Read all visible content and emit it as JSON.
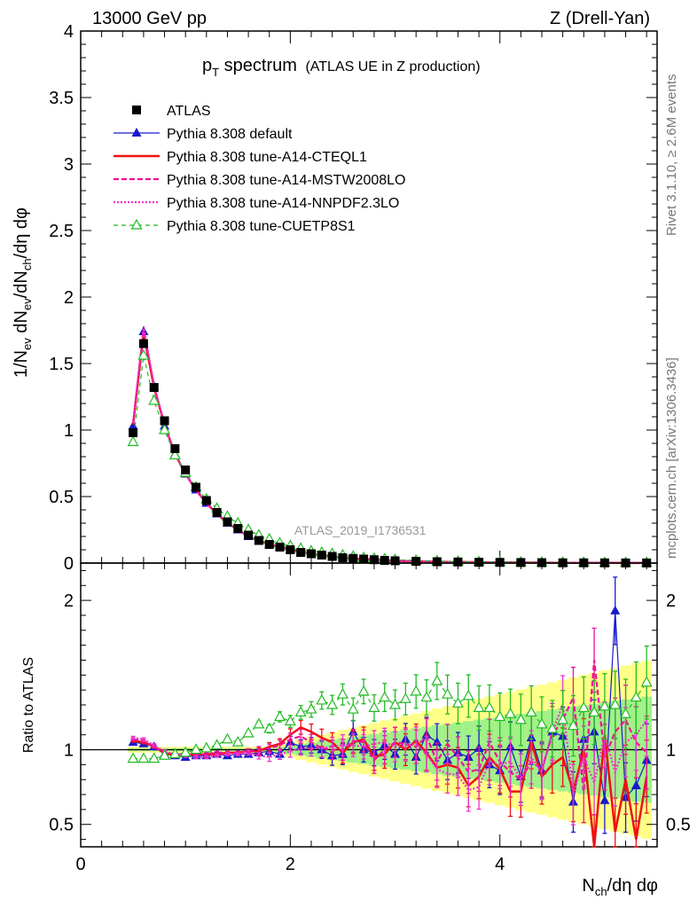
{
  "header": {
    "left": "13000 GeV pp",
    "right": "Z (Drell-Yan)"
  },
  "plot_title": {
    "main": "p",
    "sub": "T",
    "main_rest": " spectrum",
    "detail": "(ATLAS UE in Z production)"
  },
  "side_labels": {
    "rivet": "Rivet 3.1.10, ≥ 2.6M events",
    "mcplots": "mcplots.cern.ch [arXiv:1306.3436]"
  },
  "watermark": "ATLAS_2019_I1736531",
  "colors": {
    "data": "#000000",
    "default": "#1a1acc",
    "cteql1": "#ee1111",
    "mstw": "#ee1199",
    "nnpdf": "#ee33cc",
    "cuetp8s1": "#22bb22",
    "band_yellow": "#ffff88",
    "band_green": "#88ee88"
  },
  "chart_data": [
    {
      "type": "line",
      "panel": "main",
      "ylabel": "1/N_{ev} dN_{ev}/dN_{ch}/dη dφ",
      "ylim": [
        0,
        4
      ],
      "xlim": [
        0,
        5.5
      ],
      "yticks": [
        "0",
        "0.5",
        "1",
        "1.5",
        "2",
        "2.5",
        "3",
        "3.5",
        "4"
      ],
      "legend_position": "top-left",
      "x": [
        0.5,
        0.6,
        0.7,
        0.8,
        0.9,
        1.0,
        1.1,
        1.2,
        1.3,
        1.4,
        1.5,
        1.6,
        1.7,
        1.8,
        1.9,
        2.0,
        2.1,
        2.2,
        2.3,
        2.4,
        2.5,
        2.6,
        2.7,
        2.8,
        2.9,
        3.0,
        3.2,
        3.4,
        3.6,
        3.8,
        4.0,
        4.2,
        4.4,
        4.6,
        4.8,
        5.0,
        5.2,
        5.4
      ],
      "series": [
        {
          "name": "ATLAS",
          "key": "data",
          "values": [
            0.98,
            1.65,
            1.32,
            1.07,
            0.86,
            0.7,
            0.57,
            0.47,
            0.38,
            0.31,
            0.26,
            0.21,
            0.17,
            0.14,
            0.12,
            0.1,
            0.08,
            0.07,
            0.06,
            0.05,
            0.04,
            0.035,
            0.03,
            0.025,
            0.02,
            0.017,
            0.013,
            0.01,
            0.008,
            0.006,
            0.005,
            0.004,
            0.003,
            0.002,
            0.002,
            0.0015,
            0.001,
            0.001
          ]
        },
        {
          "name": "Pythia 8.308 default",
          "key": "default",
          "values": [
            1.03,
            1.74,
            1.33,
            1.03,
            0.82,
            0.67,
            0.55,
            0.45,
            0.37,
            0.3,
            0.25,
            0.2,
            0.17,
            0.14,
            0.12,
            0.1,
            0.08,
            0.07,
            0.06,
            0.05,
            0.04,
            0.035,
            0.03,
            0.025,
            0.02,
            0.017,
            0.013,
            0.01,
            0.008,
            0.006,
            0.005,
            0.004,
            0.003,
            0.002,
            0.002,
            0.0015,
            0.001,
            0.001
          ]
        },
        {
          "name": "Pythia 8.308 tune-A14-CTEQL1",
          "key": "cteql1",
          "values": [
            1.04,
            1.73,
            1.32,
            1.04,
            0.82,
            0.67,
            0.55,
            0.45,
            0.37,
            0.3,
            0.25,
            0.2,
            0.17,
            0.14,
            0.12,
            0.1,
            0.09,
            0.07,
            0.06,
            0.05,
            0.04,
            0.035,
            0.03,
            0.025,
            0.02,
            0.017,
            0.013,
            0.01,
            0.008,
            0.006,
            0.005,
            0.004,
            0.003,
            0.002,
            0.002,
            0.0015,
            0.001,
            0.001
          ]
        },
        {
          "name": "Pythia 8.308 tune-A14-MSTW2008LO",
          "key": "mstw",
          "values": [
            1.05,
            1.75,
            1.33,
            1.04,
            0.82,
            0.67,
            0.55,
            0.45,
            0.37,
            0.3,
            0.25,
            0.2,
            0.17,
            0.14,
            0.12,
            0.1,
            0.08,
            0.07,
            0.06,
            0.05,
            0.04,
            0.035,
            0.03,
            0.025,
            0.02,
            0.017,
            0.013,
            0.01,
            0.008,
            0.006,
            0.005,
            0.004,
            0.003,
            0.002,
            0.002,
            0.0015,
            0.001,
            0.001
          ]
        },
        {
          "name": "Pythia 8.308 tune-A14-NNPDF2.3LO",
          "key": "nnpdf",
          "values": [
            1.06,
            1.78,
            1.34,
            1.04,
            0.82,
            0.67,
            0.55,
            0.45,
            0.37,
            0.3,
            0.25,
            0.2,
            0.17,
            0.14,
            0.12,
            0.1,
            0.08,
            0.07,
            0.06,
            0.05,
            0.04,
            0.035,
            0.03,
            0.025,
            0.02,
            0.017,
            0.013,
            0.01,
            0.008,
            0.006,
            0.005,
            0.004,
            0.003,
            0.002,
            0.002,
            0.0015,
            0.001,
            0.001
          ]
        },
        {
          "name": "Pythia 8.308 tune-CUETP8S1",
          "key": "cuetp8s1",
          "values": [
            0.91,
            1.56,
            1.22,
            1.0,
            0.81,
            0.68,
            0.57,
            0.48,
            0.41,
            0.35,
            0.3,
            0.25,
            0.21,
            0.18,
            0.15,
            0.13,
            0.11,
            0.09,
            0.08,
            0.07,
            0.06,
            0.05,
            0.04,
            0.035,
            0.03,
            0.025,
            0.02,
            0.015,
            0.012,
            0.009,
            0.007,
            0.006,
            0.005,
            0.004,
            0.003,
            0.002,
            0.002,
            0.0015
          ]
        }
      ]
    },
    {
      "type": "line",
      "panel": "ratio",
      "ylabel": "Ratio to ATLAS",
      "xlabel": "N_{ch}/dη dφ",
      "ylim": [
        0.35,
        2.25
      ],
      "xlim": [
        0,
        5.5
      ],
      "yticks": [
        "0.5",
        "1",
        "2"
      ],
      "xticks": [
        "0",
        "2",
        "4"
      ],
      "x": [
        0.5,
        0.6,
        0.7,
        0.8,
        0.9,
        1.0,
        1.1,
        1.2,
        1.3,
        1.4,
        1.5,
        1.6,
        1.7,
        1.8,
        1.9,
        2.0,
        2.1,
        2.2,
        2.3,
        2.4,
        2.5,
        2.6,
        2.7,
        2.8,
        2.9,
        3.0,
        3.1,
        3.2,
        3.3,
        3.4,
        3.5,
        3.6,
        3.7,
        3.8,
        3.9,
        4.0,
        4.1,
        4.2,
        4.3,
        4.4,
        4.5,
        4.6,
        4.7,
        4.8,
        4.9,
        5.0,
        5.1,
        5.2,
        5.3,
        5.4
      ],
      "series": [
        {
          "name": "Pythia 8.308 default",
          "key": "default",
          "values": [
            1.05,
            1.04,
            1.02,
            0.97,
            0.96,
            0.95,
            0.96,
            0.96,
            0.97,
            0.96,
            0.97,
            0.97,
            0.98,
            0.99,
            0.97,
            1.05,
            1.02,
            1.03,
            1.0,
            0.96,
            0.97,
            1.12,
            1.0,
            0.98,
            1.03,
            0.97,
            1.07,
            0.95,
            1.1,
            1.05,
            0.93,
            0.98,
            0.95,
            1.01,
            0.9,
            0.86,
            1.02,
            0.82,
            1.08,
            0.86,
            1.12,
            1.09,
            0.65,
            1.07,
            1.12,
            0.66,
            1.93,
            0.68,
            0.76,
            0.93
          ]
        },
        {
          "name": "Pythia 8.308 tune-A14-CTEQL1",
          "key": "cteql1",
          "values": [
            1.06,
            1.05,
            1.02,
            0.98,
            0.96,
            0.96,
            0.97,
            0.97,
            0.97,
            0.98,
            0.98,
            0.99,
            0.99,
            1.02,
            1.04,
            1.1,
            1.15,
            1.12,
            1.08,
            1.05,
            0.98,
            1.05,
            1.07,
            0.95,
            0.97,
            1.05,
            1.0,
            1.06,
            0.98,
            0.88,
            0.9,
            0.88,
            0.76,
            0.82,
            0.95,
            0.87,
            0.72,
            0.72,
            1.05,
            0.82,
            0.9,
            0.95,
            0.72,
            1.0,
            0.35,
            1.1,
            0.45,
            0.8,
            0.4,
            0.82
          ]
        },
        {
          "name": "Pythia 8.308 tune-A14-MSTW2008LO",
          "key": "mstw",
          "values": [
            1.07,
            1.06,
            1.02,
            0.98,
            0.97,
            0.97,
            0.97,
            0.97,
            0.98,
            0.98,
            0.98,
            0.99,
            1.0,
            1.01,
            1.03,
            1.07,
            1.09,
            1.05,
            1.01,
            1.0,
            1.0,
            1.06,
            1.05,
            0.93,
            1.0,
            1.05,
            1.04,
            1.02,
            1.09,
            0.92,
            1.04,
            0.95,
            0.85,
            0.87,
            1.05,
            0.92,
            0.85,
            0.8,
            0.92,
            0.87,
            1.1,
            1.2,
            1.35,
            0.72,
            1.6,
            0.95,
            1.12,
            1.2,
            1.05,
            0.98
          ]
        },
        {
          "name": "Pythia 8.308 tune-A14-NNPDF2.3LO",
          "key": "nnpdf",
          "values": [
            1.08,
            1.07,
            1.03,
            0.99,
            0.97,
            0.96,
            0.95,
            0.95,
            0.96,
            0.97,
            0.97,
            0.98,
            0.96,
            0.95,
            0.97,
            0.99,
            1.01,
            1.01,
            1.01,
            1.02,
            1.03,
            1.03,
            1.02,
            1.04,
            1.05,
            1.02,
            1.03,
            1.04,
            0.97,
            0.87,
            0.84,
            0.83,
            0.73,
            0.75,
            0.92,
            0.9,
            0.92,
            0.8,
            0.95,
            0.85,
            1.12,
            1.3,
            0.7,
            0.95,
            0.78,
            1.1,
            0.85,
            1.05,
            1.1,
            1.2
          ]
        },
        {
          "name": "Pythia 8.308 tune-CUETP8S1",
          "key": "cuetp8s1",
          "values": [
            0.94,
            0.94,
            0.94,
            0.96,
            0.97,
            0.98,
            1.0,
            1.01,
            1.03,
            1.07,
            1.05,
            1.11,
            1.17,
            1.14,
            1.22,
            1.19,
            1.25,
            1.27,
            1.33,
            1.3,
            1.37,
            1.27,
            1.39,
            1.28,
            1.35,
            1.3,
            1.34,
            1.39,
            1.35,
            1.46,
            1.37,
            1.31,
            1.36,
            1.28,
            1.28,
            1.22,
            1.24,
            1.2,
            1.25,
            1.17,
            1.14,
            1.2,
            1.16,
            1.28,
            1.25,
            1.29,
            1.3,
            1.24,
            1.35,
            1.45
          ]
        }
      ]
    }
  ],
  "legend": [
    {
      "label": "ATLAS",
      "key": "data"
    },
    {
      "label": "Pythia 8.308 default",
      "key": "default"
    },
    {
      "label": "Pythia 8.308 tune-A14-CTEQL1",
      "key": "cteql1"
    },
    {
      "label": "Pythia 8.308 tune-A14-MSTW2008LO",
      "key": "mstw"
    },
    {
      "label": "Pythia 8.308 tune-A14-NNPDF2.3LO",
      "key": "nnpdf"
    },
    {
      "label": "Pythia 8.308 tune-CUETP8S1",
      "key": "cuetp8s1"
    }
  ]
}
